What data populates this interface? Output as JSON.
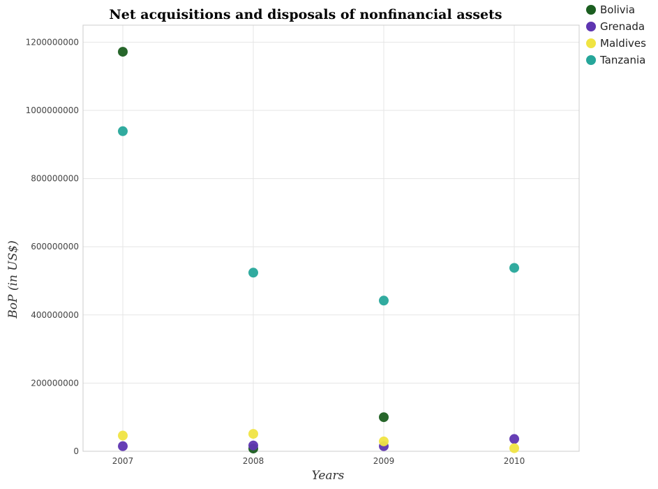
{
  "chart_data": {
    "type": "scatter",
    "title": "Net acquisitions and disposals of nonfinancial assets",
    "xlabel": "Years",
    "ylabel": "BoP (in US$)",
    "categories": [
      "2007",
      "2008",
      "2009",
      "2010"
    ],
    "ylim": [
      0,
      1250000000
    ],
    "yticks": [
      0,
      200000000,
      400000000,
      600000000,
      800000000,
      1000000000,
      1200000000
    ],
    "ytick_labels": [
      "0",
      "200000000",
      "400000000",
      "600000000",
      "800000000",
      "1000000000",
      "1200000000"
    ],
    "grid": true,
    "legend_position": "top-right",
    "series": [
      {
        "name": "Bolivia",
        "color": "#1b5e20",
        "values": [
          1172000000,
          8000000,
          100000000,
          null
        ]
      },
      {
        "name": "Grenada",
        "color": "#5e35b1",
        "values": [
          15000000,
          17000000,
          15000000,
          36000000
        ]
      },
      {
        "name": "Maldives",
        "color": "#f0e442",
        "values": [
          46000000,
          51000000,
          29000000,
          9000000
        ]
      },
      {
        "name": "Tanzania",
        "color": "#26a69a",
        "values": [
          939000000,
          524000000,
          442000000,
          538000000
        ]
      }
    ]
  }
}
